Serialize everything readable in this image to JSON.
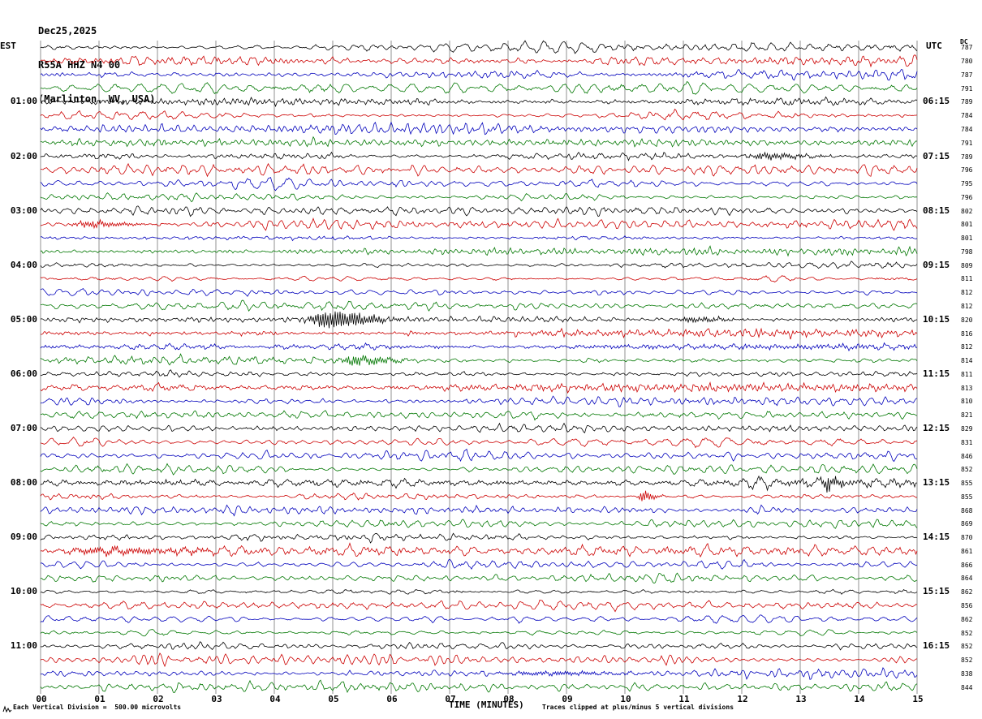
{
  "header": {
    "date": "Dec25,2025",
    "station": "R55A HHZ N4 00",
    "location": "(Marlinton, WV, USA)"
  },
  "axes": {
    "left_label": "EST",
    "right_label": "UTC",
    "dc_label": "DC",
    "x_title": "TIME (MINUTES)"
  },
  "footer": {
    "scale_note": "Each Vertical Division =  500.00 microvolts",
    "clip_note": "Traces clipped at plus/minus 5 vertical divisions"
  },
  "chart_data": {
    "type": "line",
    "title": "Helicorder seismogram R55A HHZ N4 00 (Marlinton, WV, USA)",
    "xlabel": "TIME (MINUTES)",
    "x_range_minutes": [
      0,
      15
    ],
    "x_ticks": [
      "00",
      "01",
      "02",
      "03",
      "04",
      "05",
      "06",
      "07",
      "08",
      "09",
      "10",
      "11",
      "12",
      "13",
      "14",
      "15"
    ],
    "minutes_per_line": 15,
    "lines": 48,
    "lines_per_hour": 4,
    "trace_colors": [
      "#000000",
      "#cc0000",
      "#0000bb",
      "#007700"
    ],
    "left_times": [
      "01:00",
      "02:00",
      "03:00",
      "04:00",
      "05:00",
      "06:00",
      "07:00",
      "08:00",
      "09:00",
      "10:00",
      "11:00"
    ],
    "right_times": [
      "06:15",
      "07:15",
      "08:15",
      "09:15",
      "10:15",
      "11:15",
      "12:15",
      "13:15",
      "14:15",
      "15:15",
      "16:15"
    ],
    "dc_values": [
      787,
      780,
      787,
      791,
      789,
      784,
      784,
      791,
      789,
      796,
      795,
      796,
      802,
      801,
      801,
      798,
      809,
      811,
      812,
      812,
      820,
      816,
      812,
      814,
      811,
      813,
      810,
      821,
      829,
      831,
      846,
      852,
      855,
      855,
      868,
      869,
      870,
      861,
      866,
      864,
      862,
      856,
      862,
      852,
      852,
      852,
      838,
      844
    ],
    "events": [
      {
        "trace": 8,
        "minute": 12.4,
        "duration": 0.3,
        "amplitude": 3.5
      },
      {
        "trace": 13,
        "minute": 0.85,
        "duration": 0.3,
        "amplitude": 4.0
      },
      {
        "trace": 20,
        "minute": 4.9,
        "duration": 0.3,
        "amplitude": 11.0
      },
      {
        "trace": 20,
        "minute": 11.1,
        "duration": 0.25,
        "amplitude": 4.0
      },
      {
        "trace": 23,
        "minute": 5.35,
        "duration": 0.25,
        "amplitude": 5.0
      },
      {
        "trace": 32,
        "minute": 13.45,
        "duration": 0.1,
        "amplitude": 9.0
      },
      {
        "trace": 33,
        "minute": 10.3,
        "duration": 0.08,
        "amplitude": 8.0
      },
      {
        "trace": 37,
        "minute": 0.9,
        "duration": 0.7,
        "amplitude": 3.5
      },
      {
        "trace": 46,
        "minute": 8.2,
        "duration": 0.5,
        "amplitude": 4.0
      },
      {
        "trace": 47,
        "minute": 5.2,
        "duration": 0.3,
        "amplitude": 4.0
      }
    ]
  }
}
